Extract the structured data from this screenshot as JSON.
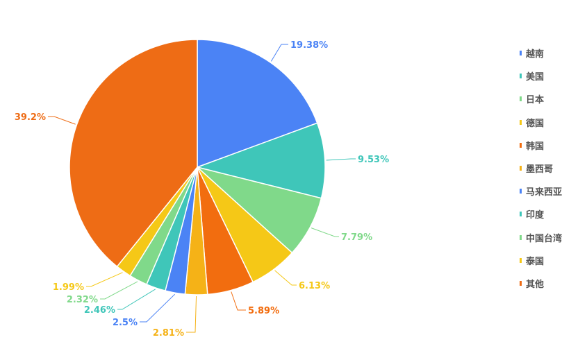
{
  "chart_data": {
    "type": "pie",
    "legend_position": "right",
    "label_position": "outside",
    "start_angle": "top",
    "direction": "clockwise",
    "series": [
      {
        "name": "越南",
        "value": 19.38,
        "label": "19.38%",
        "color": "#4b83f5"
      },
      {
        "name": "美国",
        "value": 9.53,
        "label": "9.53%",
        "color": "#3fc6b9"
      },
      {
        "name": "日本",
        "value": 7.79,
        "label": "7.79%",
        "color": "#80d98a"
      },
      {
        "name": "德国",
        "value": 6.13,
        "label": "6.13%",
        "color": "#f5c817"
      },
      {
        "name": "韩国",
        "value": 5.89,
        "label": "5.89%",
        "color": "#f26d0f"
      },
      {
        "name": "墨西哥",
        "value": 2.81,
        "label": "2.81%",
        "color": "#f5b217"
      },
      {
        "name": "马来西亚",
        "value": 2.5,
        "label": "2.5%",
        "color": "#4b83f5"
      },
      {
        "name": "印度",
        "value": 2.46,
        "label": "2.46%",
        "color": "#3fc6b9"
      },
      {
        "name": "中国台湾",
        "value": 2.32,
        "label": "2.32%",
        "color": "#80d98a"
      },
      {
        "name": "泰国",
        "value": 1.99,
        "label": "1.99%",
        "color": "#f5c817"
      },
      {
        "name": "其他",
        "value": 39.2,
        "label": "39.2%",
        "color": "#ee6c15"
      }
    ]
  }
}
